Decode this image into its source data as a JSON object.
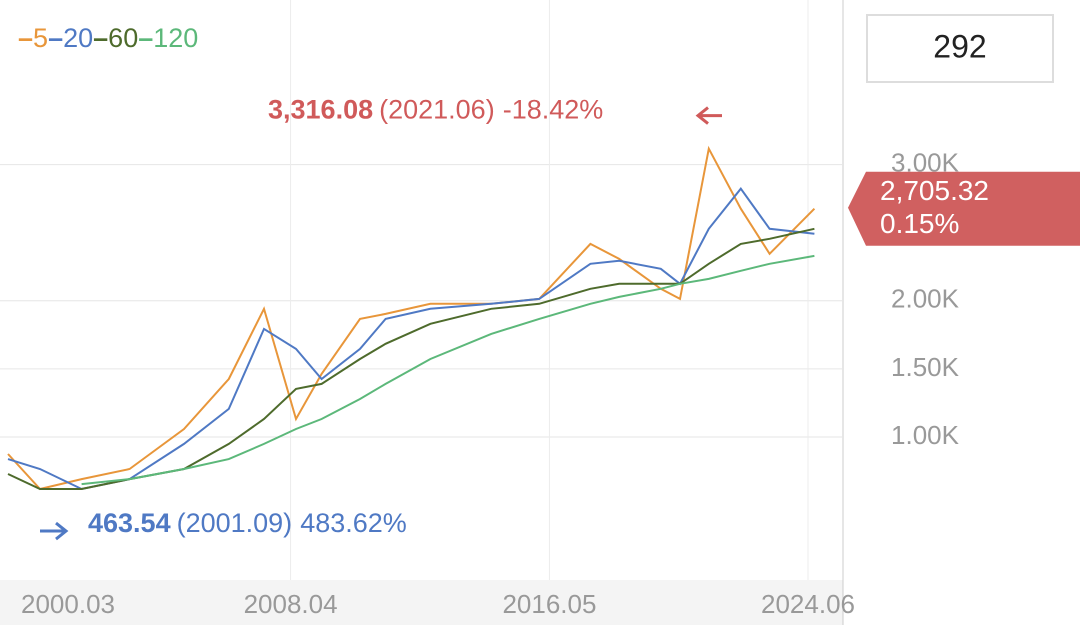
{
  "chart_data": {
    "type": "line",
    "legend": [
      "5",
      "20",
      "60",
      "120"
    ],
    "period_count": "292",
    "x": [
      1999.5,
      2000.5,
      2001.8,
      2003.3,
      2005.0,
      2006.4,
      2007.5,
      2008.5,
      2009.3,
      2010.5,
      2011.3,
      2012.7,
      2014.6,
      2016.1,
      2017.7,
      2018.6,
      2019.9,
      2020.5,
      2021.4,
      2022.4,
      2023.3,
      2024.7
    ],
    "xlim": [
      1999.5,
      2025.5
    ],
    "xticks": [
      {
        "value": 2000.25,
        "label": "2000.03"
      },
      {
        "value": 2008.33,
        "label": "2008.04"
      },
      {
        "value": 2016.42,
        "label": "2016.05"
      },
      {
        "value": 2024.5,
        "label": "2024.06"
      }
    ],
    "ylim": [
      -50,
      4150
    ],
    "yticks": [
      {
        "value": 1000,
        "label": "1.00K"
      },
      {
        "value": 1500,
        "label": "1.50K"
      },
      {
        "value": 2000,
        "label": "2.00K"
      },
      {
        "value": 3000,
        "label": "3.00K"
      }
    ],
    "grid": true,
    "series": [
      {
        "name": "5",
        "color": "#e8963a",
        "values": [
          875,
          618,
          691,
          765,
          1059,
          1426,
          1941,
          1132,
          1463,
          1867,
          1904,
          1978,
          1978,
          2014,
          2418,
          2308,
          2088,
          2014,
          3117,
          2676,
          2345,
          2676
        ]
      },
      {
        "name": "20",
        "color": "#4f79c4",
        "values": [
          838,
          765,
          618,
          691,
          949,
          1206,
          1794,
          1647,
          1426,
          1647,
          1867,
          1941,
          1978,
          2014,
          2272,
          2294,
          2235,
          2125,
          2529,
          2823,
          2529,
          2492
        ]
      },
      {
        "name": "60",
        "color": "#4e6b2c",
        "values": [
          728,
          618,
          618,
          691,
          765,
          949,
          1132,
          1353,
          1390,
          1573,
          1684,
          1831,
          1941,
          1978,
          2088,
          2125,
          2125,
          2125,
          2272,
          2418,
          2455,
          2529
        ]
      },
      {
        "name": "120",
        "color": "#5cb87a",
        "values": [
          null,
          null,
          654,
          691,
          765,
          838,
          949,
          1059,
          1132,
          1279,
          1390,
          1573,
          1757,
          1867,
          1978,
          2029,
          2088,
          2125,
          2161,
          2220,
          2272,
          2330
        ]
      }
    ],
    "high": {
      "value": 3316.08,
      "label": "3,316.08",
      "date": "(2021.06)",
      "change": "-18.42%",
      "color": "#d05a5a"
    },
    "low": {
      "value": 463.54,
      "label": "463.54",
      "date": "(2001.09)",
      "change": "483.62%",
      "color": "#4f79c4"
    },
    "current": {
      "value": 2705.32,
      "label": "2,705.32",
      "change": "0.15%",
      "color": "#d06060"
    }
  }
}
